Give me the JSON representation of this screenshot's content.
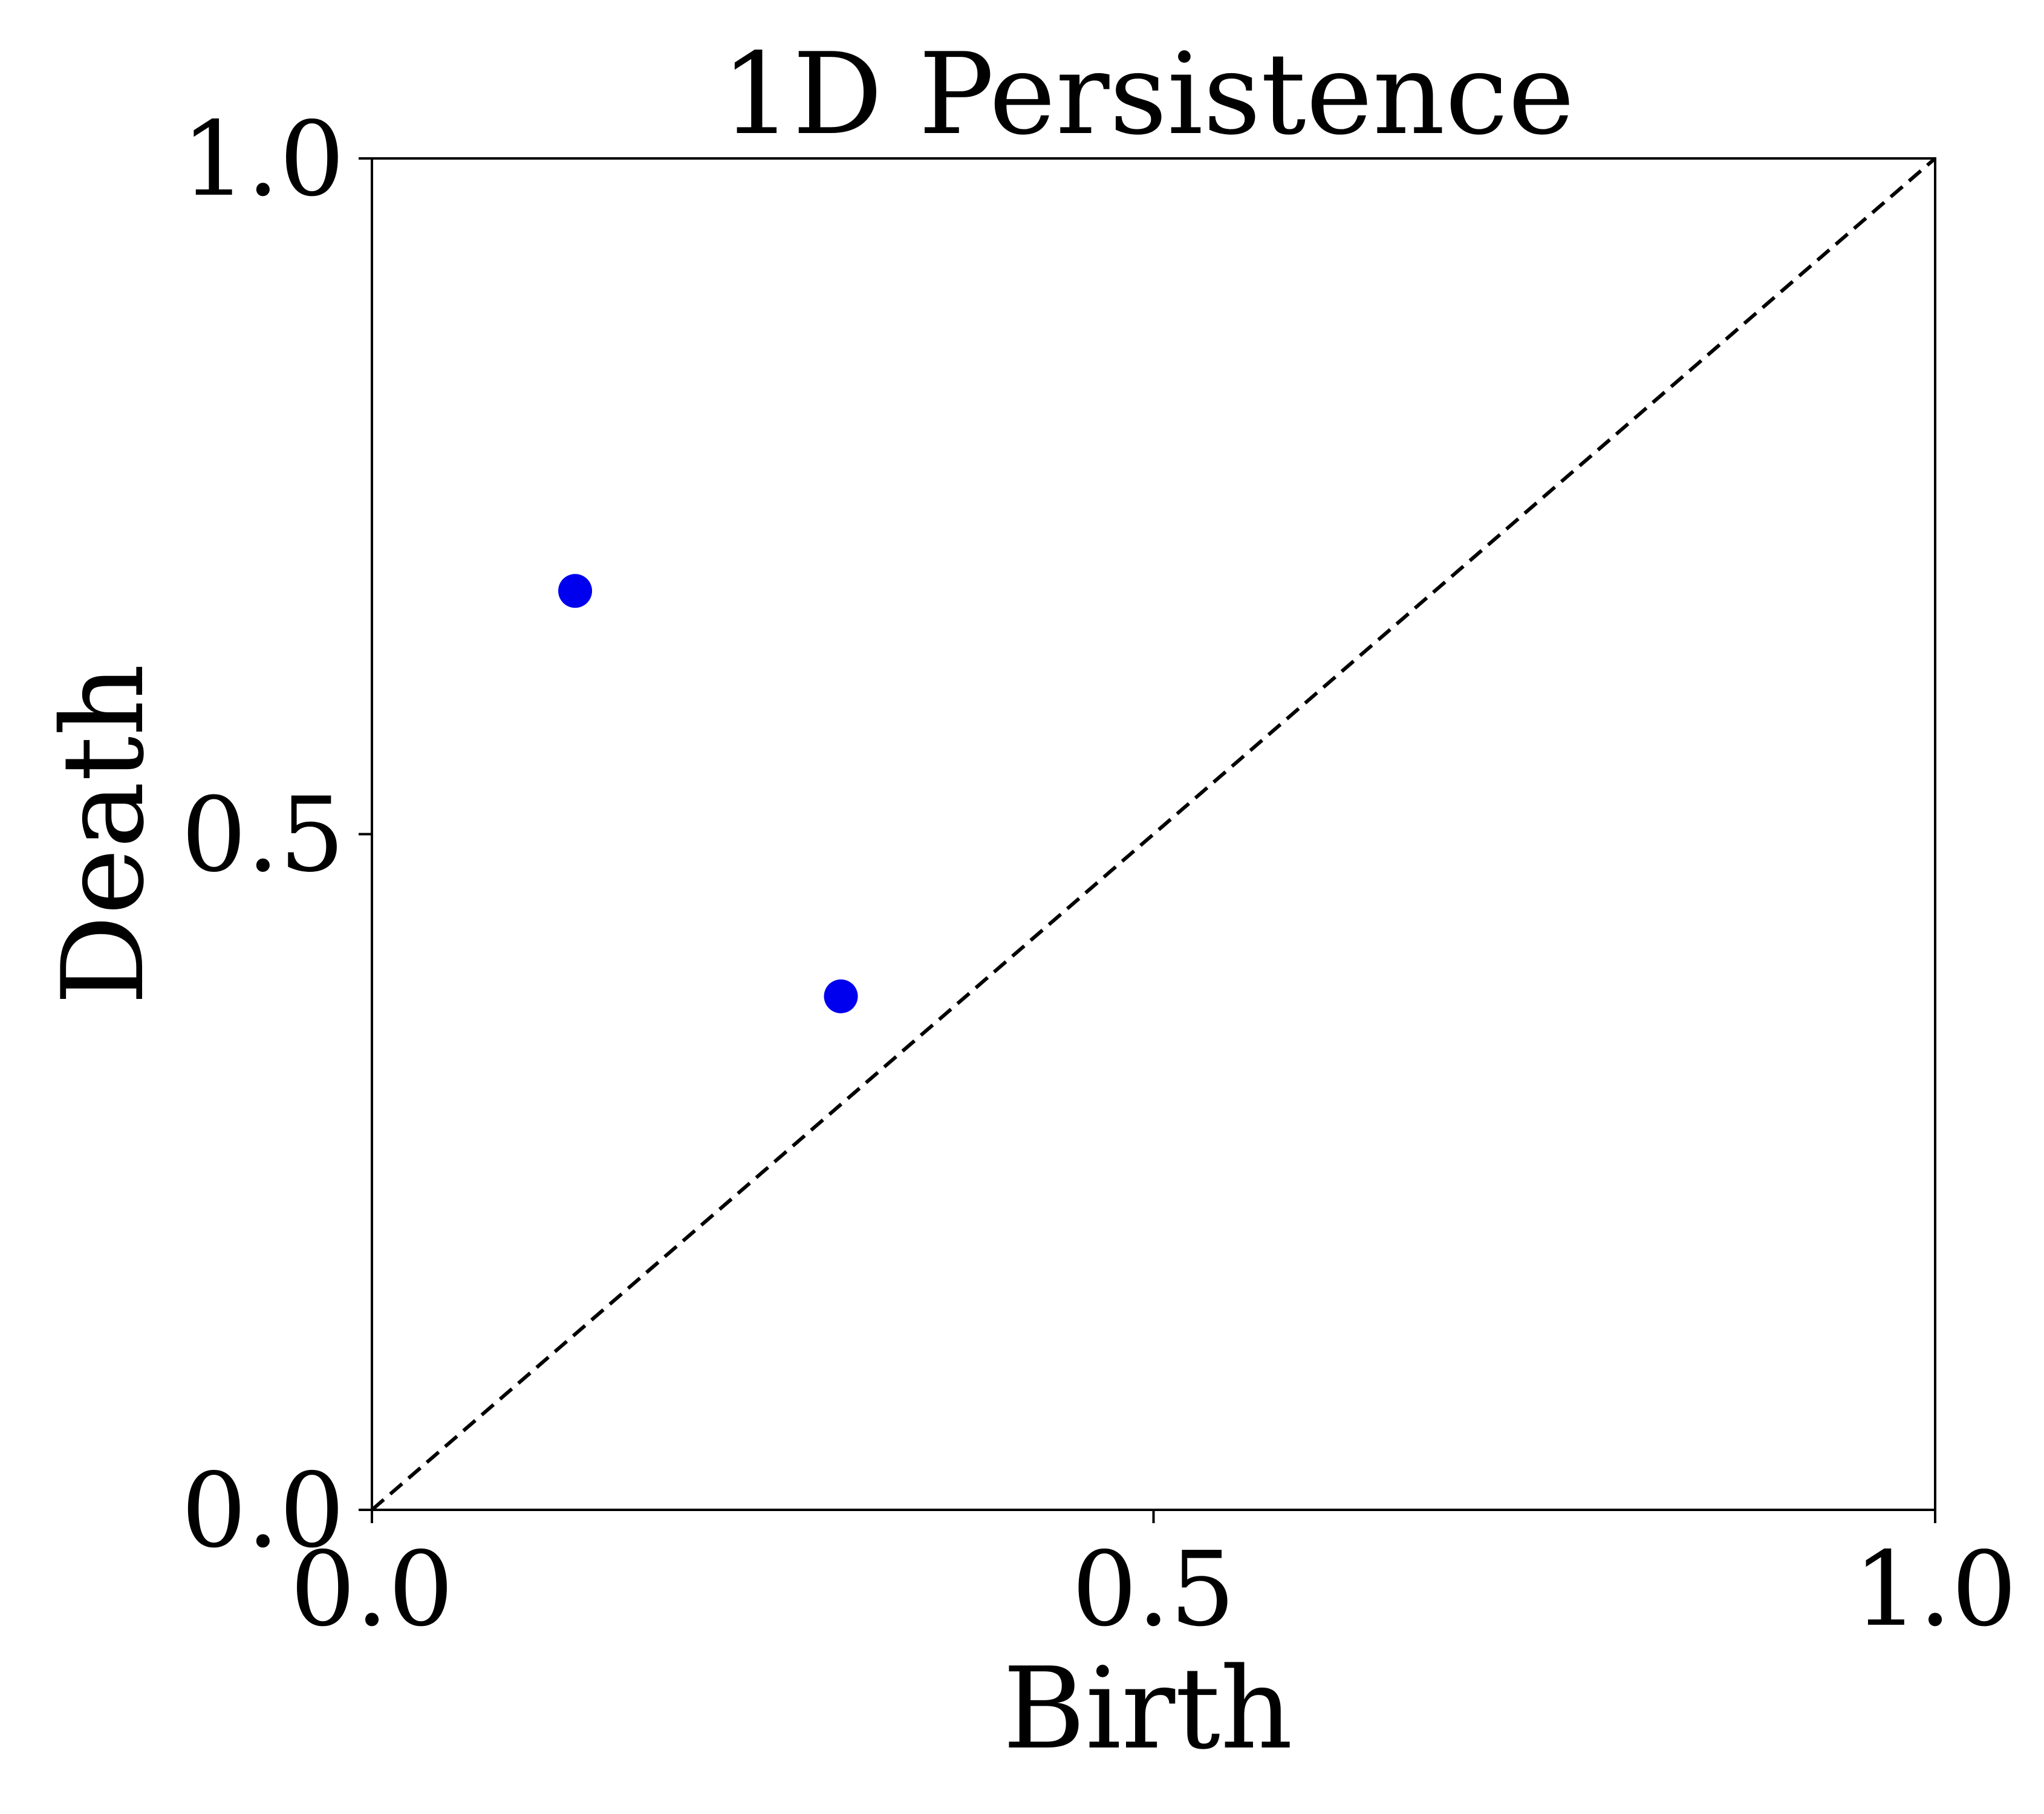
{
  "chart_data": {
    "type": "scatter",
    "title": "1D Persistence",
    "xlabel": "Birth",
    "ylabel": "Death",
    "xlim": [
      0.0,
      1.0
    ],
    "ylim": [
      0.0,
      1.0
    ],
    "xticks": [
      {
        "value": 0.0,
        "label": "0.0"
      },
      {
        "value": 0.5,
        "label": "0.5"
      },
      {
        "value": 1.0,
        "label": "1.0"
      }
    ],
    "yticks": [
      {
        "value": 0.0,
        "label": "0.0"
      },
      {
        "value": 0.5,
        "label": "0.5"
      },
      {
        "value": 1.0,
        "label": "1.0"
      }
    ],
    "grid": false,
    "legend": "none",
    "series": [
      {
        "points": [
          {
            "x": 0.13,
            "y": 0.68
          },
          {
            "x": 0.3,
            "y": 0.38
          }
        ],
        "color": "#0000ee"
      }
    ],
    "reference_line": {
      "style": "dashed",
      "color": "#000000",
      "from": [
        0.0,
        0.0
      ],
      "to": [
        1.0,
        1.0
      ]
    }
  }
}
